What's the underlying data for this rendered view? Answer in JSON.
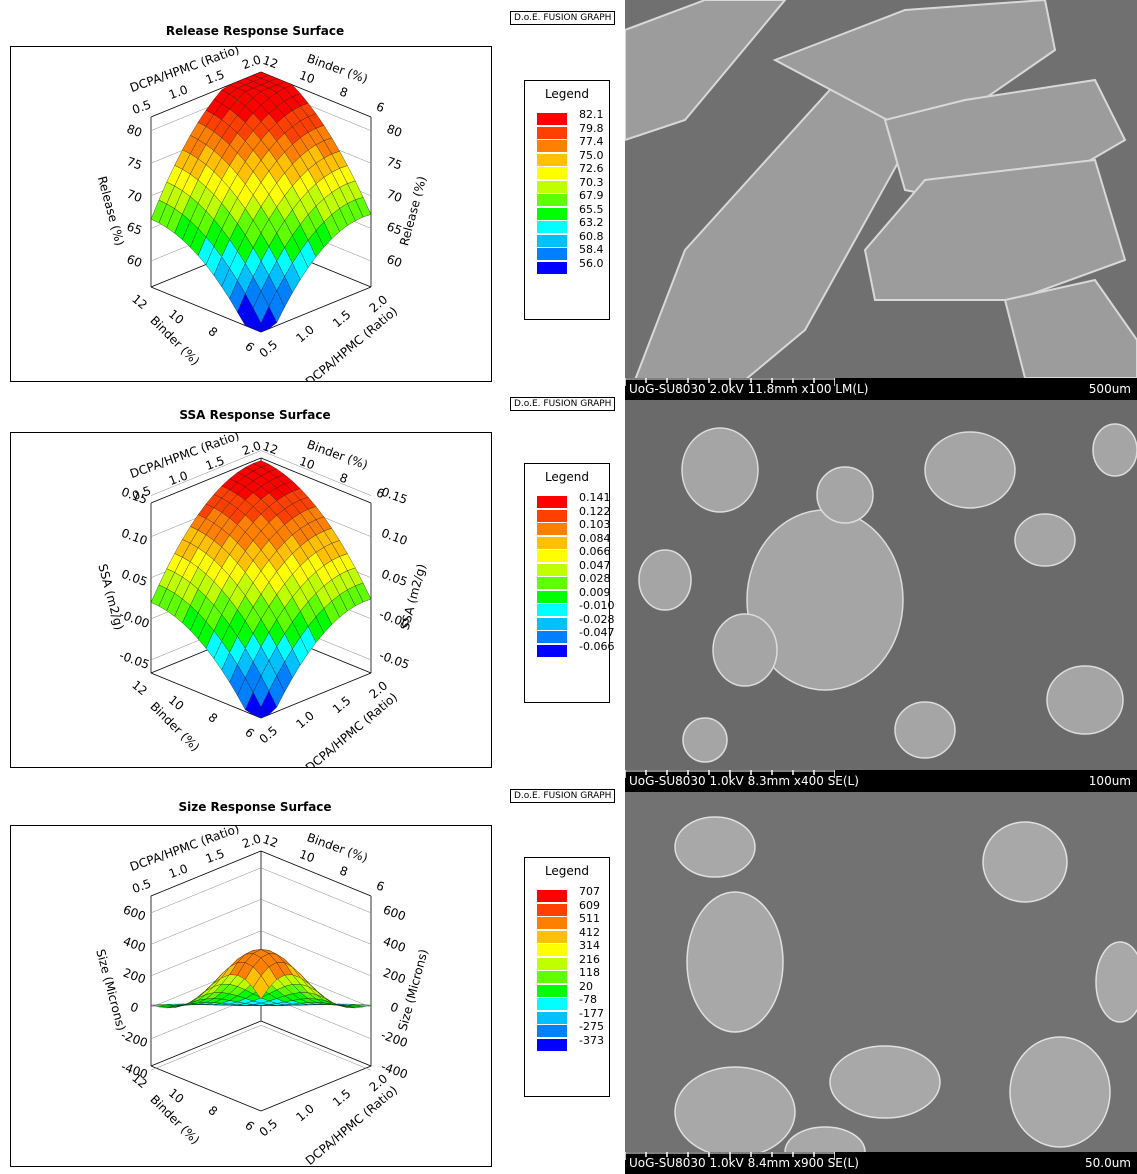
{
  "chart_data": [
    {
      "type": "surface",
      "title": "Release Response Surface",
      "badge": "D.o.E. FUSION GRAPH",
      "zlabel": "Release (%)",
      "xlabel": "DCPA/HPMC (Ratio)",
      "ylabel": "Binder (%)",
      "x_ticks": [
        "0.5",
        "1.0",
        "1.5",
        "2.0"
      ],
      "y_ticks": [
        "6",
        "8",
        "10",
        "12"
      ],
      "z_ticks": [
        "60",
        "65",
        "70",
        "75",
        "80"
      ],
      "x_range": [
        0.5,
        2.0
      ],
      "y_range": [
        6,
        12
      ],
      "z_range": [
        56.0,
        82.1
      ],
      "legend": {
        "title": "Legend",
        "values": [
          "82.1",
          "79.8",
          "77.4",
          "75.0",
          "72.6",
          "70.3",
          "67.9",
          "65.5",
          "63.2",
          "60.8",
          "58.4",
          "56.0"
        ]
      }
    },
    {
      "type": "surface",
      "title": "SSA Response Surface",
      "badge": "D.o.E. FUSION GRAPH",
      "zlabel": "SSA (m2/g)",
      "xlabel": "DCPA/HPMC (Ratio)",
      "ylabel": "Binder (%)",
      "x_ticks": [
        "0.5",
        "1.0",
        "1.5",
        "2.0"
      ],
      "y_ticks": [
        "6",
        "8",
        "10",
        "12"
      ],
      "z_ticks": [
        "-0.05",
        "-0.00",
        "0.05",
        "0.10",
        "0.15"
      ],
      "x_range": [
        0.5,
        2.0
      ],
      "y_range": [
        6,
        12
      ],
      "z_range": [
        -0.066,
        0.141
      ],
      "legend": {
        "title": "Legend",
        "values": [
          "0.141",
          "0.122",
          "0.103",
          "0.084",
          "0.066",
          "0.047",
          "0.028",
          "0.009",
          "-0.010",
          "-0.028",
          "-0.047",
          "-0.066"
        ]
      }
    },
    {
      "type": "surface",
      "title": "Size Response Surface",
      "badge": "D.o.E. FUSION GRAPH",
      "zlabel": "Size (Microns)",
      "xlabel": "DCPA/HPMC (Ratio)",
      "ylabel": "Binder (%)",
      "x_ticks": [
        "0.5",
        "1.0",
        "1.5",
        "2.0"
      ],
      "y_ticks": [
        "6",
        "8",
        "10",
        "12"
      ],
      "z_ticks": [
        "-400",
        "-200",
        "0",
        "200",
        "400",
        "600"
      ],
      "x_range": [
        0.5,
        2.0
      ],
      "y_range": [
        6,
        12
      ],
      "z_range": [
        -373,
        707
      ],
      "legend": {
        "title": "Legend",
        "values": [
          "707",
          "609",
          "511",
          "412",
          "314",
          "216",
          "118",
          "20",
          "-78",
          "-177",
          "-275",
          "-373"
        ]
      }
    }
  ],
  "legend_colors": [
    "#ff0000",
    "#ff4000",
    "#ff8000",
    "#ffc000",
    "#ffff00",
    "#c0ff00",
    "#60ff00",
    "#00ff00",
    "#00ffff",
    "#00c0ff",
    "#0080ff",
    "#0000ff"
  ],
  "sem": [
    {
      "info": "UoG-SU8030 2.0kV 11.8mm x100 LM(L)",
      "scale": "500um"
    },
    {
      "info": "UoG-SU8030 1.0kV 8.3mm x400 SE(L)",
      "scale": "100um"
    },
    {
      "info": "UoG-SU8030 1.0kV 8.4mm x900 SE(L)",
      "scale": "50.0um"
    }
  ]
}
